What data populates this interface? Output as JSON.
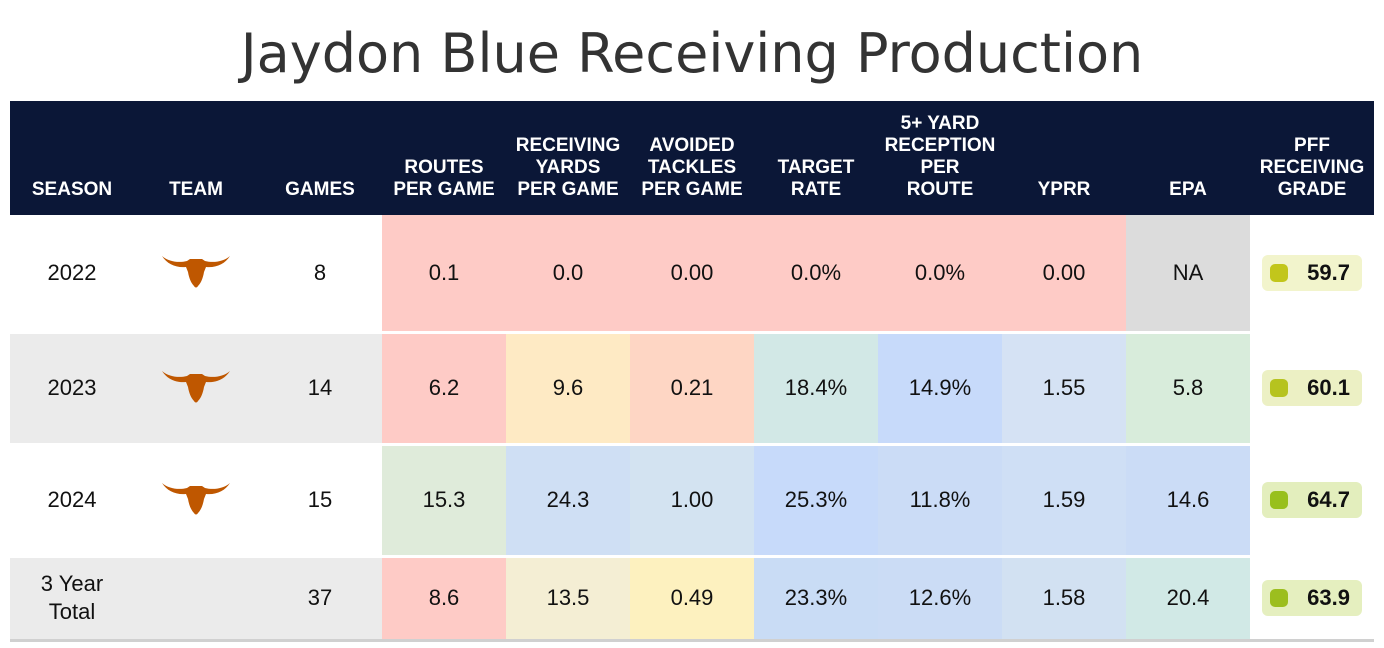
{
  "title": "Jaydon Blue Receiving Production",
  "headers": {
    "season": "SEASON",
    "team": "TEAM",
    "games": "GAMES",
    "routes": [
      "ROUTES",
      "PER GAME"
    ],
    "rec_yards": [
      "RECEIVING",
      "YARDS",
      "PER GAME"
    ],
    "avoided": [
      "AVOIDED",
      "TACKLES",
      "PER GAME"
    ],
    "target": [
      "TARGET",
      "RATE"
    ],
    "five_yard": [
      "5+ YARD",
      "RECEPTION",
      "PER",
      "ROUTE"
    ],
    "yprr": "YPRR",
    "epa": "EPA",
    "grade": [
      "PFF",
      "RECEIVING",
      "GRADE"
    ]
  },
  "team_logo_icon": "texas-longhorn-icon",
  "team_color": "#bf5700",
  "rows": [
    {
      "season": "2022",
      "team": "longhorn",
      "games": "8",
      "routes": "0.1",
      "rec_yards": "0.0",
      "avoided": "0.00",
      "target": "0.0%",
      "five_yard": "0.0%",
      "yprr": "0.00",
      "epa": "NA",
      "grade": "59.7"
    },
    {
      "season": "2023",
      "team": "longhorn",
      "games": "14",
      "routes": "6.2",
      "rec_yards": "9.6",
      "avoided": "0.21",
      "target": "18.4%",
      "five_yard": "14.9%",
      "yprr": "1.55",
      "epa": "5.8",
      "grade": "60.1"
    },
    {
      "season": "2024",
      "team": "longhorn",
      "games": "15",
      "routes": "15.3",
      "rec_yards": "24.3",
      "avoided": "1.00",
      "target": "25.3%",
      "five_yard": "11.8%",
      "yprr": "1.59",
      "epa": "14.6",
      "grade": "64.7"
    },
    {
      "season": "3 Year Total",
      "season_lines": [
        "3 Year",
        "Total"
      ],
      "team": "",
      "games": "37",
      "routes": "8.6",
      "rec_yards": "13.5",
      "avoided": "0.49",
      "target": "23.3%",
      "five_yard": "12.6%",
      "yprr": "1.58",
      "epa": "20.4",
      "grade": "63.9"
    }
  ],
  "cell_colors": [
    [
      "#fecbc6",
      "#fecbc6",
      "#fecbc6",
      "#fecbc6",
      "#fecbc6",
      "#fecbc6",
      "#dcdcdc"
    ],
    [
      "#fecbc6",
      "#feeac4",
      "#fed6c4",
      "#d2e8e6",
      "#c7dafa",
      "#d5e2f4",
      "#d8ecdb"
    ],
    [
      "#dfebda",
      "#cfdff4",
      "#d3e3f1",
      "#c7dafa",
      "#cbdcf6",
      "#cfdff5",
      "#cbdcf6"
    ],
    [
      "#fecbc6",
      "#f4eed4",
      "#fdf1bf",
      "#c9dcf5",
      "#cbdcf5",
      "#d2e1f2",
      "#d1e9e6"
    ]
  ],
  "grade_colors": [
    {
      "bg": "#f2f4cc",
      "dot": "#c2c61b"
    },
    {
      "bg": "#ecf0c4",
      "dot": "#b6c31f"
    },
    {
      "bg": "#e3eebd",
      "dot": "#98c01d"
    },
    {
      "bg": "#e5efbf",
      "dot": "#9cbe1f"
    }
  ]
}
